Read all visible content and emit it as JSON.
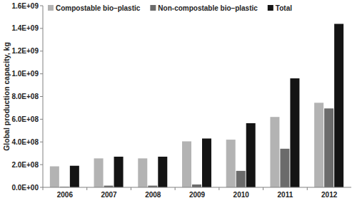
{
  "chart_data": {
    "type": "bar",
    "y_label": "Global production capacity, kg",
    "categories": [
      "2006",
      "2007",
      "2008",
      "2009",
      "2010",
      "2011",
      "2012"
    ],
    "series": [
      {
        "name": "Compostable bio–plastic",
        "color": "#b3b3b3",
        "values": [
          185000000,
          255000000,
          255000000,
          405000000,
          420000000,
          620000000,
          745000000
        ]
      },
      {
        "name": "Non-compostable bio–plastic",
        "color": "#6b6b6b",
        "values": [
          5000000,
          15000000,
          15000000,
          25000000,
          145000000,
          340000000,
          695000000
        ]
      },
      {
        "name": "Total",
        "color": "#141414",
        "values": [
          190000000,
          270000000,
          270000000,
          430000000,
          565000000,
          960000000,
          1440000000
        ]
      }
    ],
    "ylim": [
      0,
      1600000000
    ],
    "yticks": [
      {
        "value": 0,
        "label": "0.0E+00"
      },
      {
        "value": 200000000,
        "label": "2.0E+08"
      },
      {
        "value": 400000000,
        "label": "4.0E+08"
      },
      {
        "value": 600000000,
        "label": "6.0E+08"
      },
      {
        "value": 800000000,
        "label": "8.0E+08"
      },
      {
        "value": 1000000000,
        "label": "1.0E+09"
      },
      {
        "value": 1200000000,
        "label": "1.2E+09"
      },
      {
        "value": 1400000000,
        "label": "1.4E+09"
      },
      {
        "value": 1600000000,
        "label": "1.6E+09"
      }
    ],
    "grid": false,
    "legend": "top-left"
  }
}
